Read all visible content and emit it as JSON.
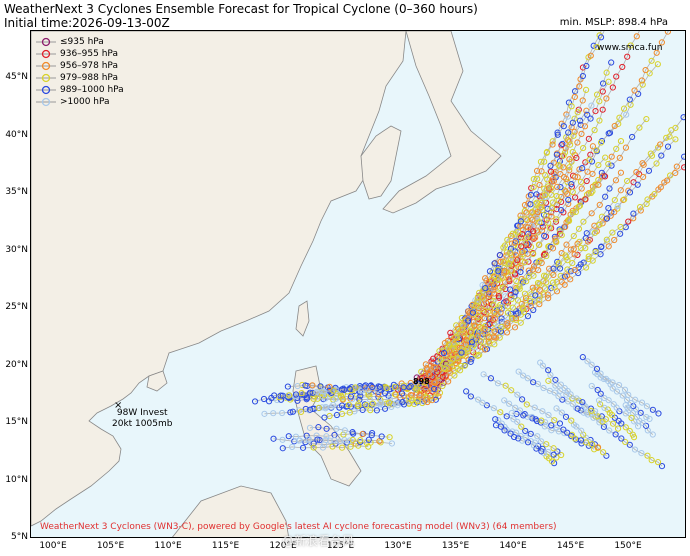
{
  "header": {
    "title": "WeatherNext 3 Cyclones Ensemble Forecast for Tropical Cyclone (0–360 hours)",
    "init_time": "Initial time:2026-09-13-00Z",
    "min_mslp": "min. MSLP: 898.4 hPa"
  },
  "website": "www.smca.fun",
  "legend": [
    {
      "label": "≤935 hPa",
      "color": "#8b1a6b"
    },
    {
      "label": "936–955 hPa",
      "color": "#e0202a"
    },
    {
      "label": "956–978 hPa",
      "color": "#f08a2a"
    },
    {
      "label": "979–988 hPa",
      "color": "#d8d22a"
    },
    {
      "label": "989–1000 hPa",
      "color": "#2a4ae0"
    },
    {
      "label": ">1000 hPa",
      "color": "#a8c8ea"
    }
  ],
  "lat_labels": [
    "45°N",
    "40°N",
    "35°N",
    "30°N",
    "25°N",
    "20°N",
    "15°N",
    "10°N",
    "5°N"
  ],
  "lon_labels": [
    "100°E",
    "105°E",
    "110°E",
    "115°E",
    "120°E",
    "125°E",
    "130°E",
    "135°E",
    "140°E",
    "145°E",
    "150°E"
  ],
  "invest": {
    "name": "98W Invest",
    "info": "20kt 1005mb"
  },
  "storm_marker": "898",
  "footer": "WeatherNext 3 Cyclones (WN3-C), powered by Google's latest AI cyclone forecasting model (WNv3) (64 members)",
  "watermark": "@新浪看台风",
  "colors": {
    "ocean": "#e8f6fb",
    "land": "#f3efe6",
    "border": "#999999",
    "track": "#b0b0b0"
  }
}
